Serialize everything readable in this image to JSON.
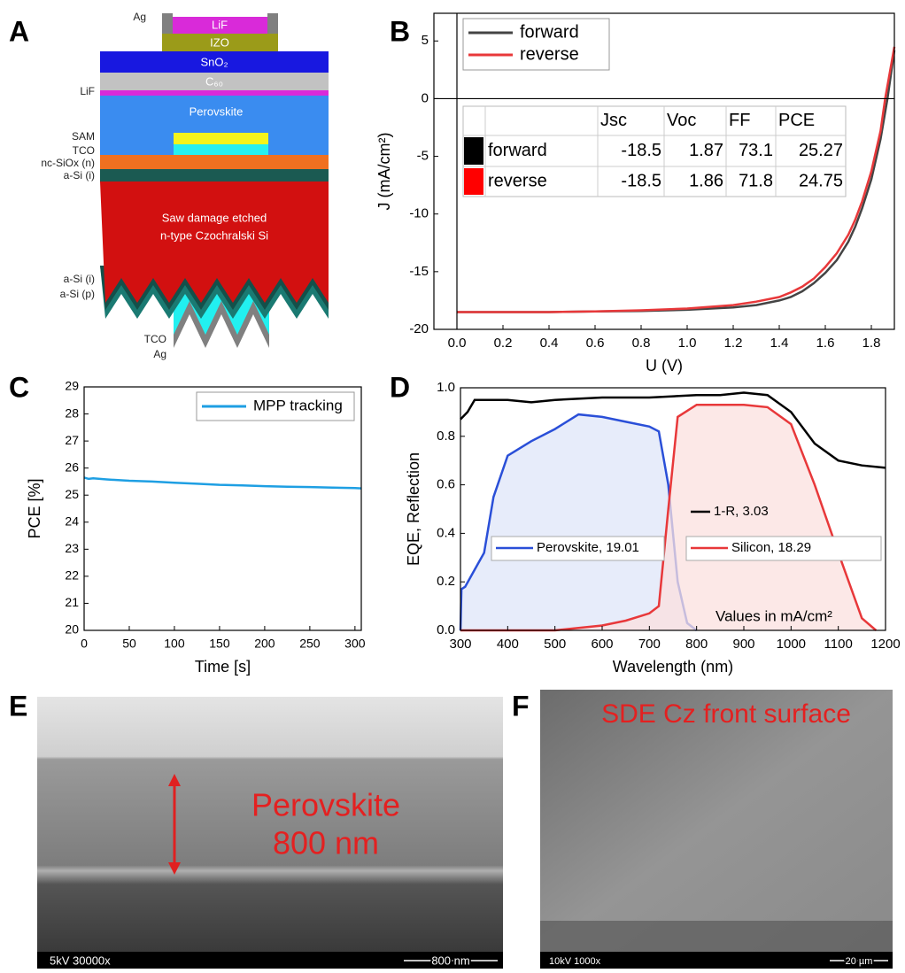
{
  "panels": [
    "A",
    "B",
    "C",
    "D",
    "E",
    "F"
  ],
  "diagram": {
    "labels": [
      "Ag",
      "LiF",
      "IZO",
      "SnO₂",
      "C₆₀",
      "LiF",
      "Perovskite",
      "SAM",
      "TCO",
      "nc-SiOx (n)",
      "a-Si (i)",
      "Saw damage etched",
      "n-type Czochralski Si",
      "a-Si (i)",
      "a-Si (p)",
      "TCO",
      "Ag"
    ]
  },
  "chart_data": [
    {
      "type": "line",
      "x_label": "U (V)",
      "y_label": "J (mA/cm²)",
      "xlim": [
        -0.1,
        1.9
      ],
      "ylim": [
        -20,
        7.4
      ],
      "xticks": [
        {
          "value": 0,
          "label": "0.0"
        },
        0.2,
        0.4,
        0.6,
        0.8,
        {
          "value": 1,
          "label": "1.0"
        },
        1.2,
        1.4,
        1.6,
        1.8
      ],
      "yticks": [
        -20,
        -15,
        -10,
        -5,
        0,
        5
      ],
      "zero_lines": true,
      "legend": "upper left",
      "series": [
        {
          "name": "forward",
          "color": "#444444",
          "x": [
            0,
            0.2,
            0.4,
            0.6,
            0.8,
            1.0,
            1.2,
            1.3,
            1.4,
            1.45,
            1.5,
            1.55,
            1.6,
            1.65,
            1.7,
            1.73,
            1.76,
            1.8,
            1.84,
            1.87,
            1.9
          ],
          "values": [
            -18.5,
            -18.5,
            -18.5,
            -18.45,
            -18.4,
            -18.3,
            -18.1,
            -17.9,
            -17.5,
            -17.2,
            -16.7,
            -16.0,
            -15.1,
            -14.0,
            -12.4,
            -11.1,
            -9.5,
            -7.0,
            -3.5,
            0,
            4.2
          ]
        },
        {
          "name": "reverse",
          "color": "#e8383a",
          "x": [
            0,
            0.2,
            0.4,
            0.6,
            0.8,
            1.0,
            1.2,
            1.3,
            1.4,
            1.45,
            1.5,
            1.55,
            1.6,
            1.65,
            1.7,
            1.73,
            1.76,
            1.8,
            1.84,
            1.86,
            1.9
          ],
          "values": [
            -18.5,
            -18.5,
            -18.5,
            -18.45,
            -18.35,
            -18.2,
            -17.9,
            -17.6,
            -17.2,
            -16.8,
            -16.3,
            -15.6,
            -14.6,
            -13.4,
            -11.8,
            -10.5,
            -8.9,
            -6.3,
            -2.8,
            0,
            4.5
          ]
        }
      ],
      "table": {
        "columns": [
          "Jsc",
          "Voc",
          "FF",
          "PCE"
        ],
        "rows": [
          {
            "name": "forward",
            "color": "#000000",
            "values": [
              -18.5,
              1.87,
              73.1,
              25.27
            ]
          },
          {
            "name": "reverse",
            "color": "#ff0000",
            "values": [
              -18.5,
              1.86,
              71.8,
              24.75
            ]
          }
        ]
      }
    },
    {
      "type": "line",
      "x_label": "Time [s]",
      "y_label": "PCE [%]",
      "xlim": [
        0,
        307
      ],
      "ylim": [
        20,
        29
      ],
      "xticks": [
        0,
        50,
        100,
        150,
        200,
        250,
        300
      ],
      "yticks": [
        20,
        21,
        22,
        23,
        24,
        25,
        26,
        27,
        28,
        29
      ],
      "legend": "upper right",
      "series": [
        {
          "name": "MPP tracking",
          "color": "#1e9fe3",
          "x": [
            0,
            5,
            10,
            25,
            50,
            75,
            100,
            125,
            150,
            175,
            200,
            225,
            250,
            275,
            300,
            307
          ],
          "values": [
            25.65,
            25.6,
            25.62,
            25.58,
            25.53,
            25.5,
            25.46,
            25.42,
            25.38,
            25.36,
            25.33,
            25.31,
            25.3,
            25.28,
            25.26,
            25.25
          ]
        }
      ]
    },
    {
      "type": "area",
      "x_label": "Wavelength (nm)",
      "y_label": "EQE, Reflection",
      "xlim": [
        300,
        1200
      ],
      "ylim": [
        0,
        1
      ],
      "xticks": [
        300,
        400,
        500,
        600,
        700,
        800,
        900,
        1000,
        1100,
        1200
      ],
      "yticks": [
        {
          "value": 0,
          "label": "0.0"
        },
        0.2,
        0.4,
        0.6,
        0.8,
        {
          "value": 1,
          "label": "1.0"
        }
      ],
      "annotation": "Values in mA/cm²",
      "series": [
        {
          "name": "1-R, 3.03",
          "color": "#000000",
          "x": [
            300,
            315,
            330,
            350,
            400,
            450,
            500,
            600,
            700,
            800,
            850,
            900,
            950,
            1000,
            1050,
            1100,
            1150,
            1200
          ],
          "values": [
            0.87,
            0.9,
            0.95,
            0.95,
            0.95,
            0.94,
            0.95,
            0.96,
            0.96,
            0.97,
            0.97,
            0.98,
            0.97,
            0.9,
            0.77,
            0.7,
            0.68,
            0.67
          ]
        },
        {
          "name": "Perovskite, 19.01",
          "color": "#2a4fd8",
          "fill": "#dfe5f8",
          "x": [
            300,
            302,
            310,
            330,
            350,
            370,
            400,
            450,
            500,
            550,
            600,
            650,
            700,
            720,
            740,
            760,
            780,
            800
          ],
          "values": [
            0,
            0.17,
            0.18,
            0.25,
            0.32,
            0.55,
            0.72,
            0.78,
            0.83,
            0.89,
            0.88,
            0.86,
            0.84,
            0.82,
            0.6,
            0.2,
            0.03,
            0
          ]
        },
        {
          "name": "Silicon, 18.29",
          "color": "#e8383a",
          "fill": "#fbe0df",
          "x": [
            300,
            500,
            600,
            650,
            700,
            720,
            740,
            760,
            800,
            900,
            950,
            1000,
            1050,
            1100,
            1150,
            1180
          ],
          "values": [
            0,
            0,
            0.02,
            0.04,
            0.07,
            0.1,
            0.5,
            0.88,
            0.93,
            0.93,
            0.92,
            0.85,
            0.6,
            0.32,
            0.05,
            0
          ]
        }
      ]
    }
  ],
  "images": [
    {
      "labels": [
        "Perovskite",
        "800 nm"
      ],
      "info": "5kV  30000x",
      "scale": "800 nm"
    },
    {
      "labels": [
        "SDE Cz front surface"
      ],
      "info": "10kV  1000x",
      "scale": "20 µm"
    }
  ]
}
